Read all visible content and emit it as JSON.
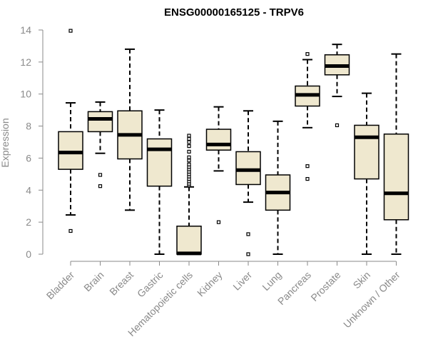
{
  "chart_data": {
    "type": "boxplot",
    "title": "ENSG00000165125 - TRPV6",
    "xlabel": "",
    "ylabel": "Expression",
    "ylim": [
      0,
      14
    ],
    "yticks": [
      0,
      2,
      4,
      6,
      8,
      10,
      12,
      14
    ],
    "colors": {
      "box_fill": "#efe8cf",
      "stroke": "#000000",
      "text": "#8a8a8a"
    },
    "categories": [
      "Bladder",
      "Brain",
      "Breast",
      "Gastric",
      "Hematopoietic cells",
      "Kidney",
      "Liver",
      "Lung",
      "Pancreas",
      "Prostate",
      "Skin",
      "Unknown / Other"
    ],
    "boxes": [
      {
        "name": "Bladder",
        "whisker_low": 2.45,
        "q1": 5.3,
        "median": 6.35,
        "q3": 7.65,
        "whisker_high": 9.45,
        "outliers": [
          1.45,
          13.95
        ]
      },
      {
        "name": "Brain",
        "whisker_low": 6.3,
        "q1": 7.65,
        "median": 8.45,
        "q3": 8.9,
        "whisker_high": 9.5,
        "outliers": [
          4.25,
          4.95
        ]
      },
      {
        "name": "Breast",
        "whisker_low": 2.75,
        "q1": 5.95,
        "median": 7.45,
        "q3": 8.95,
        "whisker_high": 12.8,
        "outliers": []
      },
      {
        "name": "Gastric",
        "whisker_low": 0.0,
        "q1": 4.25,
        "median": 6.55,
        "q3": 7.2,
        "whisker_high": 9.0,
        "outliers": []
      },
      {
        "name": "Hematopoietic cells",
        "whisker_low": 0.0,
        "q1": 0.0,
        "median": 0.05,
        "q3": 1.75,
        "whisker_high": 4.2,
        "outliers": [
          4.3,
          4.4,
          4.55,
          4.7,
          4.85,
          5.0,
          5.15,
          5.3,
          5.45,
          5.6,
          5.85,
          6.05,
          6.4,
          6.75,
          7.0,
          7.2,
          7.4
        ]
      },
      {
        "name": "Kidney",
        "whisker_low": 5.2,
        "q1": 6.5,
        "median": 6.85,
        "q3": 7.8,
        "whisker_high": 9.2,
        "outliers": [
          2.0
        ]
      },
      {
        "name": "Liver",
        "whisker_low": 3.25,
        "q1": 4.35,
        "median": 5.25,
        "q3": 6.4,
        "whisker_high": 8.95,
        "outliers": [
          0.0,
          1.25
        ]
      },
      {
        "name": "Lung",
        "whisker_low": 0.0,
        "q1": 2.75,
        "median": 3.85,
        "q3": 4.95,
        "whisker_high": 8.3,
        "outliers": []
      },
      {
        "name": "Pancreas",
        "whisker_low": 7.9,
        "q1": 9.25,
        "median": 9.95,
        "q3": 10.5,
        "whisker_high": 12.15,
        "outliers": [
          4.7,
          5.5,
          12.5
        ]
      },
      {
        "name": "Prostate",
        "whisker_low": 9.85,
        "q1": 11.2,
        "median": 11.75,
        "q3": 12.45,
        "whisker_high": 13.1,
        "outliers": [
          8.05
        ]
      },
      {
        "name": "Skin",
        "whisker_low": 0.0,
        "q1": 4.7,
        "median": 7.3,
        "q3": 8.05,
        "whisker_high": 10.05,
        "outliers": []
      },
      {
        "name": "Unknown / Other",
        "whisker_low": 0.0,
        "q1": 2.15,
        "median": 3.8,
        "q3": 7.5,
        "whisker_high": 12.5,
        "outliers": []
      }
    ]
  }
}
